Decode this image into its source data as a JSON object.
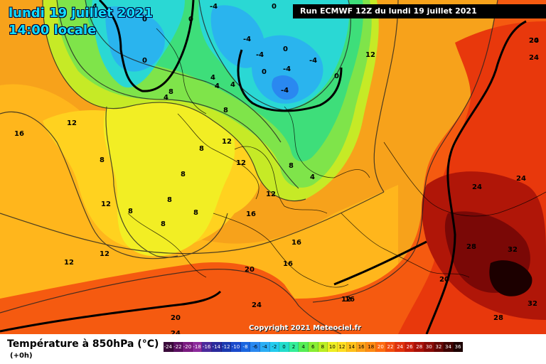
{
  "header": {
    "date_title": "lundi 19 juillet 2021",
    "time_title": "14:00 locale",
    "run_info": "Run ECMWF 12Z du lundi 19 juillet 2021"
  },
  "copyright": "Copyright 2021 Meteociel.fr",
  "footer": {
    "title": "Température à 850hPa (°C)",
    "subtitle": "(+0h)"
  },
  "legend": {
    "values": [
      "-24",
      "-22",
      "-20",
      "-18",
      "-16",
      "-14",
      "-12",
      "-10",
      "-8",
      "-6",
      "-4",
      "-2",
      "0",
      "2",
      "4",
      "6",
      "8",
      "10",
      "12",
      "14",
      "16",
      "18",
      "20",
      "22",
      "24",
      "26",
      "28",
      "30",
      "32",
      "34",
      "36"
    ],
    "colors": [
      "#3a0a3a",
      "#5a1060",
      "#7a1a80",
      "#8c2a9c",
      "#4a2a9c",
      "#2a2a9c",
      "#1a3ab0",
      "#1a4acc",
      "#1a66e0",
      "#2a88f0",
      "#2aaef5",
      "#22ccee",
      "#22ddcc",
      "#33ee99",
      "#55ee55",
      "#88ee33",
      "#bbee22",
      "#eeee22",
      "#ffdd22",
      "#ffc01a",
      "#ffa21a",
      "#ff8a14",
      "#ff6a10",
      "#f24a0e",
      "#e0300c",
      "#c81c0a",
      "#a81008",
      "#880a06",
      "#640604",
      "#3e0302",
      "#1c0000"
    ]
  },
  "contour_labels": [
    {
      "text": "4"
    },
    {
      "text": "-4"
    },
    {
      "text": "0"
    },
    {
      "text": "0"
    },
    {
      "text": "0"
    },
    {
      "text": "-4"
    },
    {
      "text": "-4"
    },
    {
      "text": "-4"
    },
    {
      "text": "0"
    },
    {
      "text": "-4"
    },
    {
      "text": "-4"
    },
    {
      "text": "0"
    },
    {
      "text": "0"
    },
    {
      "text": "0"
    },
    {
      "text": "4"
    },
    {
      "text": "4"
    },
    {
      "text": "4"
    },
    {
      "text": "8"
    },
    {
      "text": "8"
    },
    {
      "text": "4"
    },
    {
      "text": "12"
    },
    {
      "text": "16"
    },
    {
      "text": "12"
    },
    {
      "text": "8"
    },
    {
      "text": "12"
    },
    {
      "text": "8"
    },
    {
      "text": "8"
    },
    {
      "text": "12"
    },
    {
      "text": "8"
    },
    {
      "text": "8"
    },
    {
      "text": "4"
    },
    {
      "text": "8"
    },
    {
      "text": "8"
    },
    {
      "text": "8"
    },
    {
      "text": "12"
    },
    {
      "text": "12"
    },
    {
      "text": "12"
    },
    {
      "text": "16"
    },
    {
      "text": "16"
    },
    {
      "text": "16"
    },
    {
      "text": "12"
    },
    {
      "text": "12"
    },
    {
      "text": "20"
    },
    {
      "text": "20"
    },
    {
      "text": "16"
    },
    {
      "text": "24"
    },
    {
      "text": "24"
    },
    {
      "text": "20"
    },
    {
      "text": "24"
    },
    {
      "text": "24"
    },
    {
      "text": "24"
    },
    {
      "text": "28"
    },
    {
      "text": "32"
    },
    {
      "text": "32"
    },
    {
      "text": "28"
    },
    {
      "text": "20"
    },
    {
      "text": "24"
    }
  ]
}
